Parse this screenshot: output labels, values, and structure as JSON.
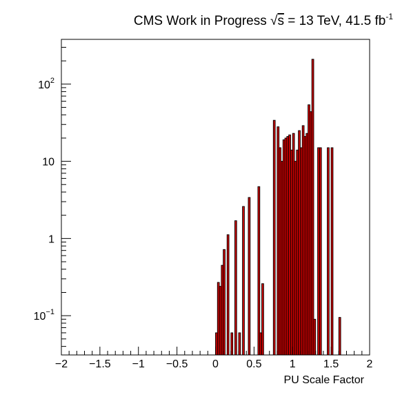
{
  "chart_data": {
    "type": "bar",
    "title_main": "CMS Work in Progress",
    "title_energy_prefix": "√",
    "title_energy_var": "s",
    "title_energy_rest": " = 13 TeV, 41.5 fb",
    "title_lumi_sup": "-1",
    "xlabel": "PU Scale Factor",
    "ylabel": "",
    "xlim": [
      -2,
      2
    ],
    "ylim": [
      0.031,
      380
    ],
    "log_y": true,
    "grid": false,
    "bin_width": 0.025,
    "fill_color": "#cc0000",
    "edge_color": "#000000",
    "x_ticks": [
      {
        "value": -2,
        "label": "−2"
      },
      {
        "value": -1.5,
        "label": "−1.5"
      },
      {
        "value": -1,
        "label": "−1"
      },
      {
        "value": -0.5,
        "label": "−0.5"
      },
      {
        "value": 0,
        "label": "0"
      },
      {
        "value": 0.5,
        "label": "0.5"
      },
      {
        "value": 1,
        "label": "1"
      },
      {
        "value": 1.5,
        "label": "1.5"
      },
      {
        "value": 2,
        "label": "2"
      }
    ],
    "y_ticks": [
      {
        "value": 0.1,
        "label_base": "10",
        "label_exp": "−1"
      },
      {
        "value": 1,
        "label_base": "1",
        "label_exp": ""
      },
      {
        "value": 10,
        "label_base": "10",
        "label_exp": ""
      },
      {
        "value": 100,
        "label_base": "10",
        "label_exp": "2"
      }
    ],
    "bins": [
      {
        "x": 0.0,
        "y": 0.06
      },
      {
        "x": 0.025,
        "y": 0.27
      },
      {
        "x": 0.05,
        "y": 0.24
      },
      {
        "x": 0.075,
        "y": 0.45
      },
      {
        "x": 0.1,
        "y": 0.72
      },
      {
        "x": 0.15,
        "y": 1.12
      },
      {
        "x": 0.2,
        "y": 0.06
      },
      {
        "x": 0.25,
        "y": 1.7
      },
      {
        "x": 0.3,
        "y": 0.06
      },
      {
        "x": 0.35,
        "y": 2.6
      },
      {
        "x": 0.425,
        "y": 3.4
      },
      {
        "x": 0.55,
        "y": 4.7
      },
      {
        "x": 0.575,
        "y": 0.06
      },
      {
        "x": 0.6,
        "y": 0.26
      },
      {
        "x": 0.75,
        "y": 34
      },
      {
        "x": 0.8,
        "y": 28
      },
      {
        "x": 0.825,
        "y": 15
      },
      {
        "x": 0.85,
        "y": 10
      },
      {
        "x": 0.875,
        "y": 19
      },
      {
        "x": 0.9,
        "y": 20
      },
      {
        "x": 0.925,
        "y": 21
      },
      {
        "x": 0.95,
        "y": 22
      },
      {
        "x": 0.975,
        "y": 14
      },
      {
        "x": 1.0,
        "y": 23
      },
      {
        "x": 1.025,
        "y": 10
      },
      {
        "x": 1.05,
        "y": 14
      },
      {
        "x": 1.075,
        "y": 25
      },
      {
        "x": 1.1,
        "y": 15
      },
      {
        "x": 1.125,
        "y": 29
      },
      {
        "x": 1.15,
        "y": 21
      },
      {
        "x": 1.175,
        "y": 23
      },
      {
        "x": 1.2,
        "y": 54
      },
      {
        "x": 1.225,
        "y": 44
      },
      {
        "x": 1.25,
        "y": 210
      },
      {
        "x": 1.275,
        "y": 0.09
      },
      {
        "x": 1.325,
        "y": 15
      },
      {
        "x": 1.35,
        "y": 15
      },
      {
        "x": 1.45,
        "y": 15
      },
      {
        "x": 1.5,
        "y": 15
      },
      {
        "x": 1.6,
        "y": 0.095
      }
    ]
  }
}
